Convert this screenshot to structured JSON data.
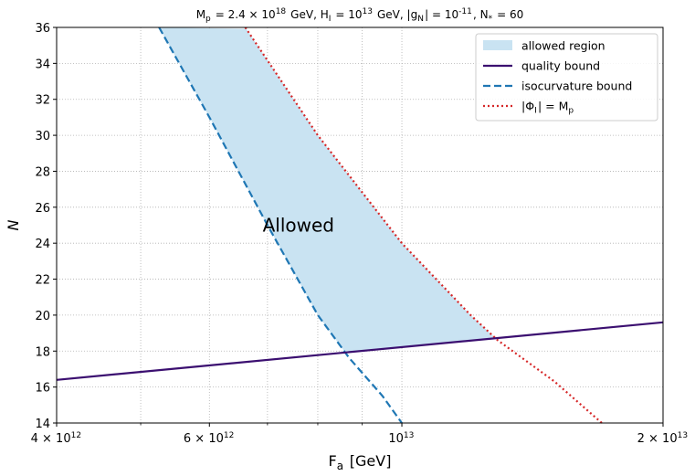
{
  "chart_data": {
    "type": "line",
    "title": "M_p = 2.4 × 10^18 GeV,  H_I = 10^13 GeV,  |g_N| = 10^-11,  N_* = 60",
    "xlabel": "F_a [GeV]",
    "ylabel": "N",
    "xscale": "log",
    "xlim": [
      4000000000000.0,
      20000000000000.0
    ],
    "ylim": [
      14,
      36
    ],
    "x_ticks": [
      4000000000000.0,
      6000000000000.0,
      10000000000000.0,
      20000000000000.0
    ],
    "x_tick_labels": [
      "4 × 10^12",
      "6 × 10^12",
      "10^13",
      "2 × 10^13"
    ],
    "y_ticks": [
      14,
      16,
      18,
      20,
      22,
      24,
      26,
      28,
      30,
      32,
      34,
      36
    ],
    "y_tick_labels": [
      "14",
      "16",
      "18",
      "20",
      "22",
      "24",
      "26",
      "28",
      "30",
      "32",
      "34",
      "36"
    ],
    "grid": true,
    "legend_position": "top-right",
    "annotation": {
      "text": "Allowed",
      "x": 7600000000000.0,
      "y": 25
    },
    "series": [
      {
        "name": "allowed region",
        "style": "fill",
        "color": "#c9e3f2"
      },
      {
        "name": "quality bound",
        "style": "solid",
        "color": "#3b0f70",
        "x": [
          4000000000000.0,
          20000000000000.0
        ],
        "y": [
          16.4,
          19.6
        ]
      },
      {
        "name": "isocurvature bound",
        "style": "dashed",
        "color": "#1f77b4",
        "x": [
          5250000000000.0,
          6000000000000.0,
          7000000000000.0,
          8000000000000.0,
          8700000000000.0,
          9500000000000.0,
          10000000000000.0
        ],
        "y": [
          36,
          31,
          25,
          20,
          17.6,
          15.5,
          14
        ]
      },
      {
        "name": "|Φ_I| = M_p",
        "style": "dotted",
        "color": "#d62728",
        "x": [
          6600000000000.0,
          8000000000000.0,
          10000000000000.0,
          12000000000000.0,
          12900000000000.0,
          15000000000000.0,
          17000000000000.0
        ],
        "y": [
          36,
          30,
          24,
          20,
          18.6,
          16.3,
          14
        ]
      }
    ]
  }
}
